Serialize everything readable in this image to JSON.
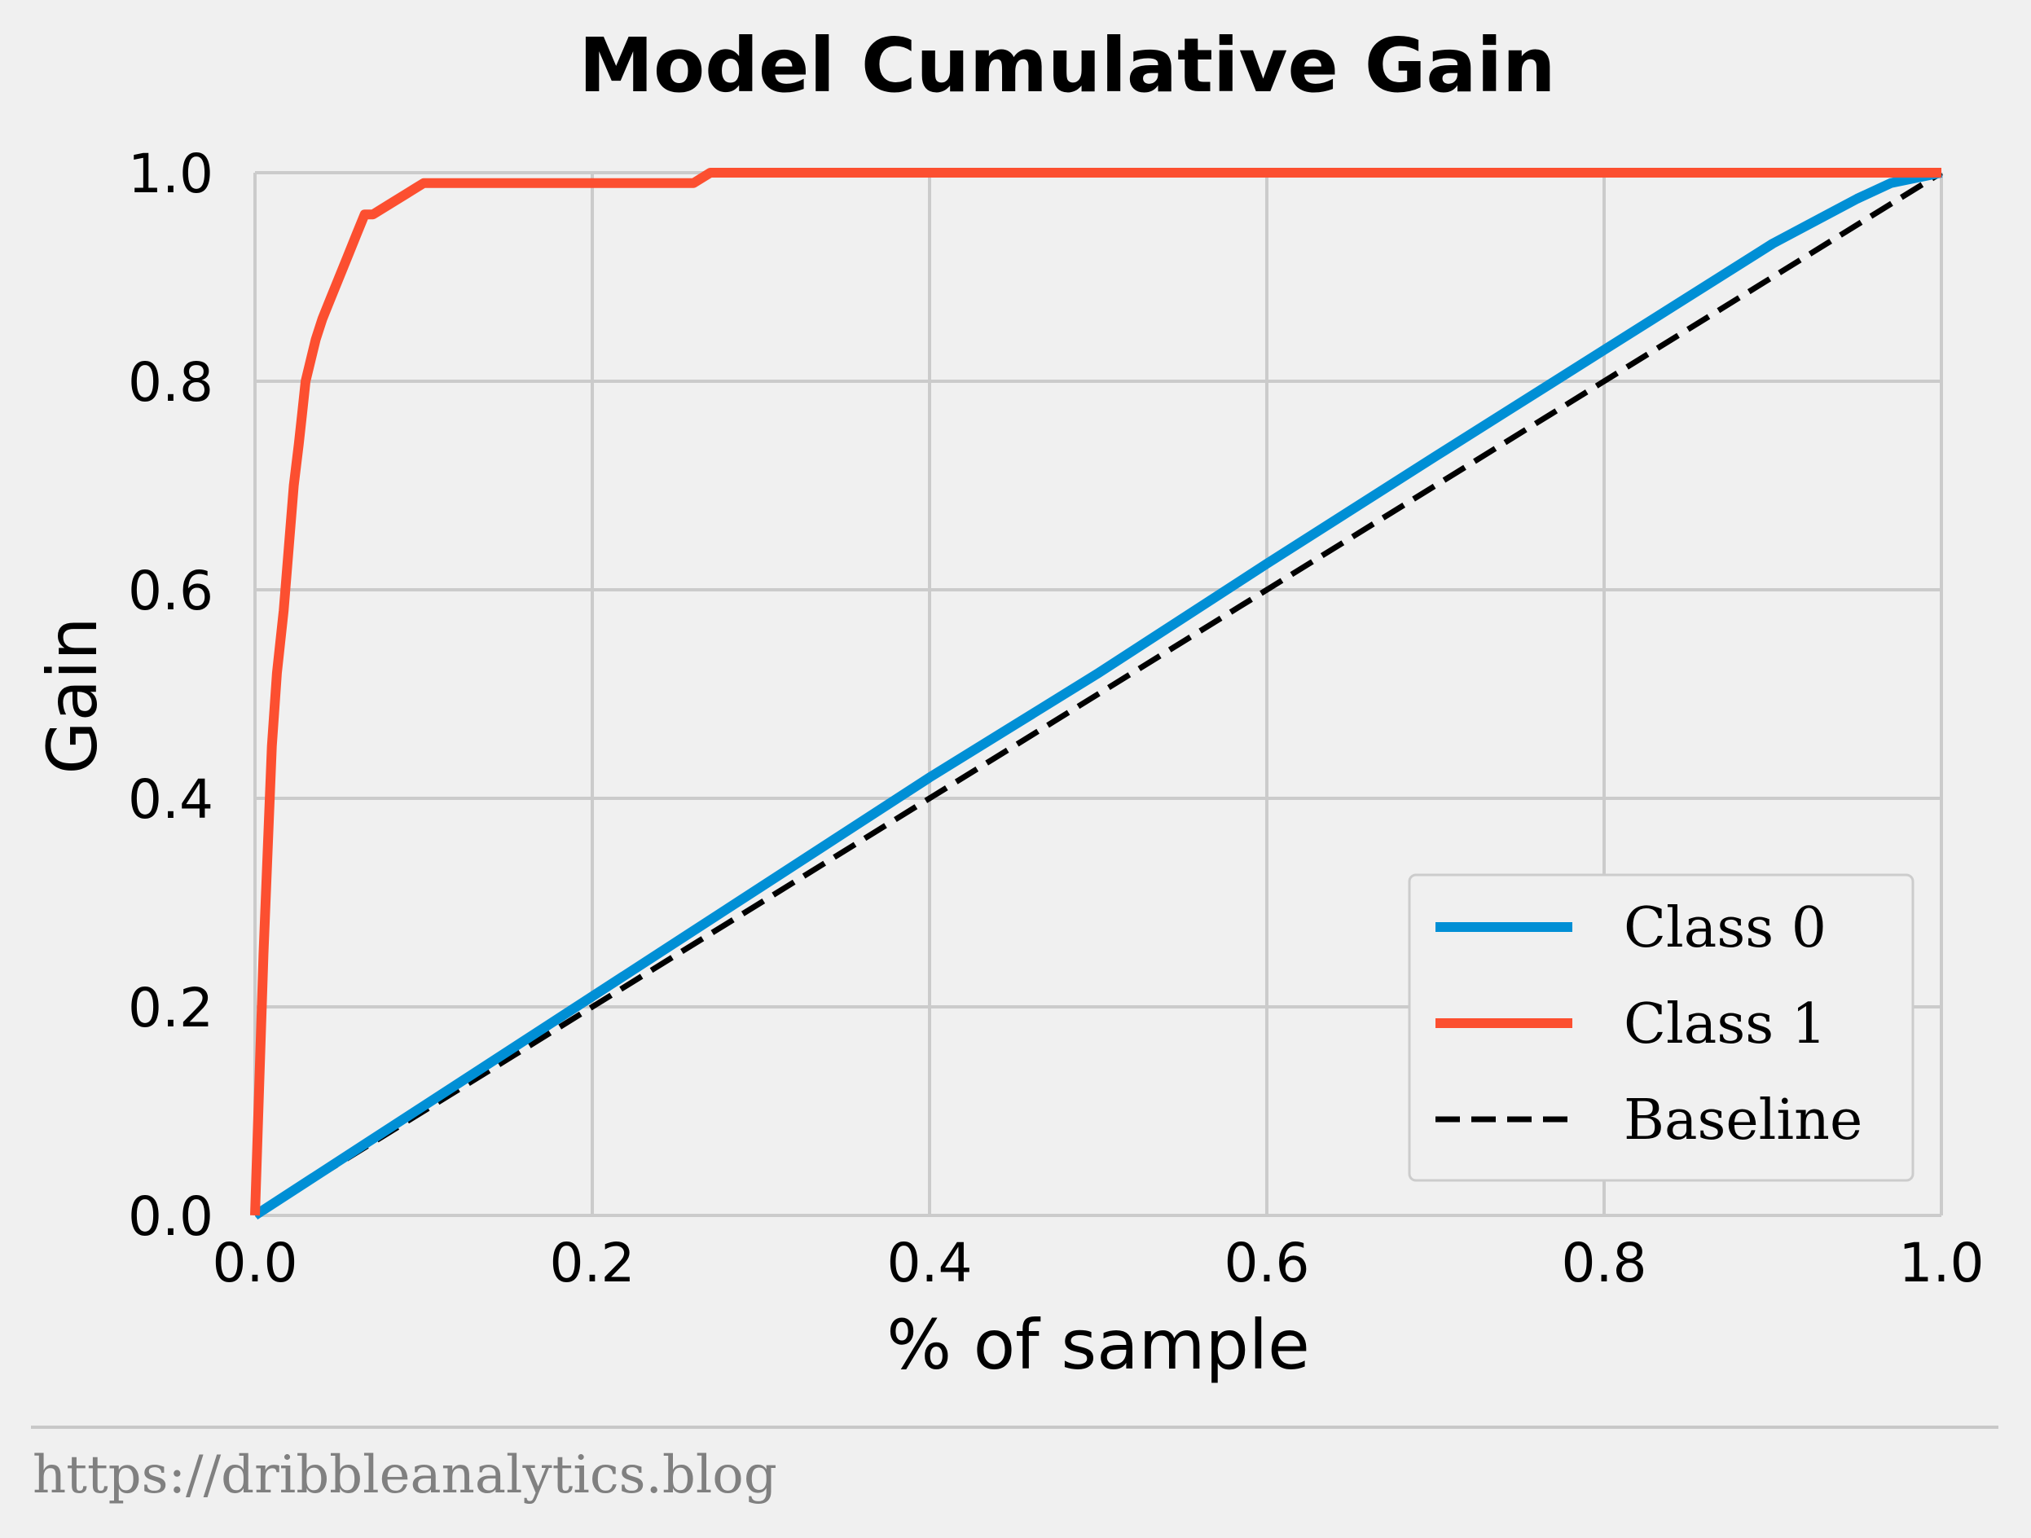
{
  "chart_data": {
    "type": "line",
    "title": "Model Cumulative Gain",
    "xlabel": "% of sample",
    "ylabel": "Gain",
    "xlim": [
      0,
      1
    ],
    "ylim": [
      0,
      1
    ],
    "xticks": [
      "0.0",
      "0.2",
      "0.4",
      "0.6",
      "0.8",
      "1.0"
    ],
    "yticks": [
      "0.0",
      "0.2",
      "0.4",
      "0.6",
      "0.8",
      "1.0"
    ],
    "grid": true,
    "legend_position": "lower-right",
    "series": [
      {
        "name": "Class 0",
        "color": "#008fd5",
        "style": "solid",
        "x": [
          0.0,
          0.1,
          0.2,
          0.3,
          0.4,
          0.5,
          0.6,
          0.7,
          0.8,
          0.9,
          0.95,
          0.97,
          1.0
        ],
        "y": [
          0.0,
          0.105,
          0.21,
          0.315,
          0.42,
          0.52,
          0.625,
          0.728,
          0.83,
          0.932,
          0.975,
          0.99,
          1.0
        ]
      },
      {
        "name": "Class 1",
        "color": "#fc4f30",
        "style": "solid",
        "x": [
          0.0,
          0.005,
          0.01,
          0.013,
          0.017,
          0.02,
          0.023,
          0.026,
          0.028,
          0.03,
          0.033,
          0.036,
          0.04,
          0.045,
          0.05,
          0.055,
          0.06,
          0.065,
          0.07,
          0.08,
          0.09,
          0.1,
          0.15,
          0.2,
          0.26,
          0.27,
          0.5,
          1.0
        ],
        "y": [
          0.0,
          0.25,
          0.45,
          0.52,
          0.58,
          0.64,
          0.7,
          0.74,
          0.77,
          0.8,
          0.82,
          0.84,
          0.86,
          0.88,
          0.9,
          0.92,
          0.94,
          0.96,
          0.96,
          0.97,
          0.98,
          0.99,
          0.99,
          0.99,
          0.99,
          1.0,
          1.0,
          1.0
        ]
      },
      {
        "name": "Baseline",
        "color": "#000000",
        "style": "dashed",
        "x": [
          0.0,
          1.0
        ],
        "y": [
          0.0,
          1.0
        ]
      }
    ]
  },
  "footer": {
    "source": "https://dribbleanalytics.blog"
  }
}
